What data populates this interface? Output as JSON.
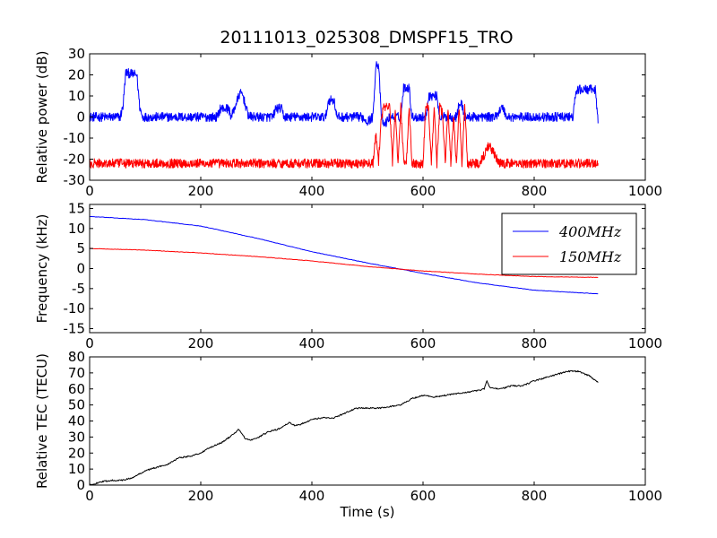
{
  "figure_title": "20111013_025308_DMSPF15_TRO",
  "chart_data": [
    {
      "type": "line",
      "name": "relative-power",
      "ylabel": "Relative power (dB)",
      "xlabel": "",
      "xlim": [
        0,
        1000
      ],
      "ylim": [
        -30,
        30
      ],
      "xticks": [
        0,
        200,
        400,
        600,
        800,
        1000
      ],
      "yticks": [
        -30,
        -20,
        -10,
        0,
        10,
        20,
        30
      ],
      "series": [
        {
          "color": "#0000ff",
          "x": [
            0,
            55,
            60,
            65,
            85,
            90,
            95,
            100,
            230,
            235,
            250,
            255,
            270,
            275,
            285,
            290,
            330,
            335,
            345,
            350,
            425,
            430,
            440,
            445,
            490,
            500,
            510,
            515,
            520,
            525,
            530,
            540,
            560,
            565,
            575,
            580,
            605,
            610,
            625,
            630,
            660,
            665,
            670,
            675,
            730,
            740,
            745,
            750,
            870,
            875,
            880,
            885,
            910,
            915
          ],
          "y": [
            0,
            0,
            5,
            21,
            20,
            5,
            0,
            0,
            0,
            4,
            4,
            0,
            11,
            11,
            1,
            0,
            0,
            4,
            4,
            0,
            0,
            8,
            8,
            0,
            0,
            -2,
            0,
            25,
            25,
            0,
            -4,
            0,
            0,
            14,
            14,
            0,
            0,
            10,
            10,
            0,
            0,
            6,
            6,
            0,
            0,
            4,
            4,
            0,
            0,
            12,
            13,
            13,
            13,
            -3
          ]
        },
        {
          "color": "#ff0000",
          "x": [
            0,
            510,
            515,
            520,
            525,
            530,
            540,
            545,
            550,
            555,
            560,
            565,
            570,
            575,
            580,
            590,
            600,
            605,
            610,
            615,
            620,
            625,
            630,
            635,
            640,
            645,
            650,
            655,
            660,
            665,
            670,
            675,
            680,
            690,
            700,
            710,
            715,
            720,
            730,
            735,
            745,
            760,
            800,
            850,
            910,
            915
          ],
          "y": [
            -22,
            -22,
            -8,
            -22,
            0,
            5,
            5,
            -22,
            5,
            -22,
            5,
            -20,
            -22,
            5,
            -22,
            -22,
            -22,
            5,
            5,
            -22,
            5,
            -22,
            5,
            2,
            -22,
            5,
            -22,
            0,
            -22,
            5,
            -22,
            6,
            -22,
            -22,
            -22,
            -18,
            -14,
            -14,
            -18,
            -22,
            -22,
            -22,
            -22,
            -22,
            -22,
            -22
          ]
        }
      ]
    },
    {
      "type": "line",
      "name": "frequency",
      "ylabel": "Frequency (kHz)",
      "xlabel": "",
      "xlim": [
        0,
        1000
      ],
      "ylim": [
        -16,
        16
      ],
      "xticks": [
        0,
        200,
        400,
        600,
        800,
        1000
      ],
      "yticks": [
        -15,
        -10,
        -5,
        0,
        5,
        10,
        15
      ],
      "legend_position": "top-right",
      "series": [
        {
          "name": "400MHz",
          "color": "#0000ff",
          "x": [
            0,
            100,
            200,
            300,
            400,
            500,
            600,
            700,
            800,
            915
          ],
          "y": [
            13,
            12.2,
            10.6,
            7.6,
            4.2,
            1.4,
            -1.2,
            -3.6,
            -5.4,
            -6.3
          ]
        },
        {
          "name": "150MHz",
          "color": "#ff0000",
          "x": [
            0,
            100,
            200,
            300,
            400,
            500,
            600,
            700,
            800,
            915
          ],
          "y": [
            5,
            4.6,
            3.9,
            3,
            1.9,
            0.5,
            -0.6,
            -1.4,
            -2,
            -2.2
          ]
        }
      ]
    },
    {
      "type": "line",
      "name": "relative-tec",
      "ylabel": "Relative TEC (TECU)",
      "xlabel": "Time (s)",
      "xlim": [
        0,
        1000
      ],
      "ylim": [
        0,
        80
      ],
      "xticks": [
        0,
        200,
        400,
        600,
        800,
        1000
      ],
      "yticks": [
        0,
        10,
        20,
        30,
        40,
        50,
        60,
        70,
        80
      ],
      "series": [
        {
          "color": "#000000",
          "x": [
            0,
            20,
            40,
            60,
            80,
            100,
            120,
            140,
            160,
            180,
            200,
            220,
            240,
            260,
            268,
            280,
            290,
            300,
            320,
            340,
            360,
            370,
            380,
            400,
            420,
            440,
            460,
            480,
            500,
            520,
            540,
            560,
            580,
            600,
            620,
            640,
            660,
            680,
            700,
            710,
            715,
            720,
            740,
            760,
            780,
            800,
            820,
            840,
            860,
            880,
            900,
            915
          ],
          "y": [
            0,
            2,
            3,
            3,
            5,
            9,
            11,
            13,
            17,
            18,
            20,
            24,
            27,
            32,
            35,
            29,
            28,
            29,
            33,
            35,
            39,
            37,
            38,
            41,
            42,
            42,
            45,
            48,
            48,
            48,
            49,
            50,
            54,
            56,
            55,
            56,
            57,
            58,
            59,
            60,
            65,
            61,
            60,
            62,
            62,
            65,
            67,
            69,
            71,
            71,
            68,
            64
          ]
        }
      ]
    }
  ]
}
